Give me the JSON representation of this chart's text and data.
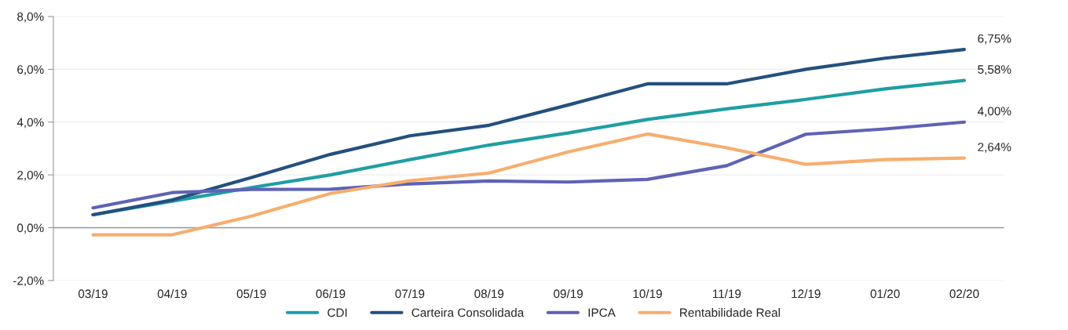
{
  "chart_data": {
    "type": "line",
    "categories": [
      "03/19",
      "04/19",
      "05/19",
      "06/19",
      "07/19",
      "08/19",
      "09/19",
      "10/19",
      "11/19",
      "12/19",
      "01/20",
      "02/20"
    ],
    "series": [
      {
        "name": "CDI",
        "color": "#1f9ea3",
        "values": [
          0.49,
          1.0,
          1.52,
          2.0,
          2.58,
          3.13,
          3.59,
          4.1,
          4.5,
          4.86,
          5.26,
          5.58
        ],
        "value_labels": [
          null,
          null,
          null,
          null,
          null,
          null,
          null,
          null,
          null,
          null,
          null,
          "5,58%"
        ]
      },
      {
        "name": "Carteira Consolidada",
        "color": "#24507e",
        "values": [
          0.49,
          1.05,
          1.9,
          2.78,
          3.48,
          3.88,
          4.65,
          5.45,
          5.45,
          6.0,
          6.42,
          6.75
        ],
        "value_labels": [
          null,
          null,
          null,
          null,
          null,
          null,
          null,
          null,
          null,
          null,
          null,
          "6,75%"
        ]
      },
      {
        "name": "IPCA",
        "color": "#5f63b5",
        "values": [
          0.75,
          1.33,
          1.45,
          1.46,
          1.66,
          1.77,
          1.73,
          1.83,
          2.35,
          3.54,
          3.74,
          4.0
        ],
        "value_labels": [
          null,
          null,
          null,
          null,
          null,
          null,
          null,
          null,
          null,
          null,
          null,
          "4,00%"
        ]
      },
      {
        "name": "Rentabilidade Real",
        "color": "#f6ae6f",
        "values": [
          -0.27,
          -0.27,
          0.44,
          1.3,
          1.78,
          2.07,
          2.87,
          3.55,
          3.03,
          2.4,
          2.58,
          2.64
        ],
        "value_labels": [
          null,
          null,
          null,
          null,
          null,
          null,
          null,
          null,
          null,
          null,
          null,
          "2,64%"
        ]
      }
    ],
    "ylim": [
      -2,
      8
    ],
    "yticks": [
      {
        "value": -2,
        "label": "-2,0%"
      },
      {
        "value": 0,
        "label": "0,0%"
      },
      {
        "value": 2,
        "label": "2,0%"
      },
      {
        "value": 4,
        "label": "4,0%"
      },
      {
        "value": 6,
        "label": "6,0%"
      },
      {
        "value": 8,
        "label": "8,0%"
      }
    ],
    "grid": "y",
    "legend": "bottom",
    "marker": "none",
    "line_style": "solid"
  }
}
